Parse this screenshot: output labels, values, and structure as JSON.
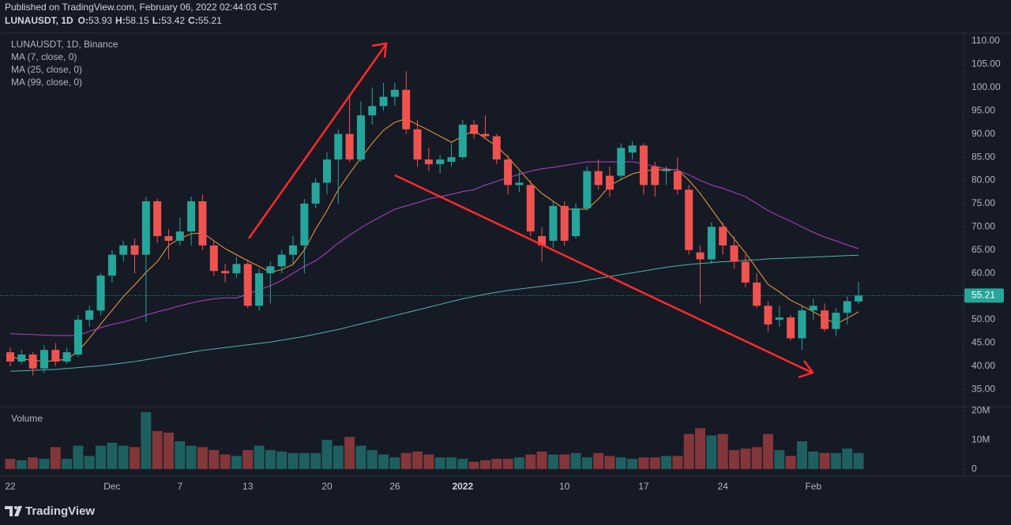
{
  "chart_data": {
    "type": "candlestick",
    "title": "Published on TradingView.com, February 06, 2022 02:44:03 CST",
    "symbol": "LUNAUSDT, 1D",
    "ohlc_labels": [
      "O:",
      "H:",
      "L:",
      "C:"
    ],
    "subtitle": "LUNAUSDT, 1D, Binance",
    "branding": "TradingView",
    "up_color": "#26a69a",
    "down_color": "#ef5350",
    "categories": [
      "22",
      null,
      null,
      null,
      null,
      null,
      null,
      null,
      null,
      "Dec",
      null,
      null,
      null,
      null,
      null,
      "7",
      null,
      null,
      null,
      null,
      null,
      "13",
      null,
      null,
      null,
      null,
      null,
      null,
      "20",
      null,
      null,
      null,
      null,
      null,
      "26",
      null,
      null,
      null,
      null,
      null,
      "2022",
      null,
      null,
      null,
      null,
      null,
      null,
      null,
      null,
      "10",
      null,
      null,
      null,
      null,
      null,
      null,
      "17",
      null,
      null,
      null,
      null,
      null,
      null,
      "24",
      null,
      null,
      null,
      null,
      null,
      null,
      null,
      "Feb",
      null,
      null,
      null,
      null
    ],
    "open": [
      43,
      41,
      42.5,
      39.5,
      43.5,
      41,
      42.5,
      50,
      52,
      59.5,
      64,
      66,
      64,
      75.5,
      68,
      67,
      69,
      75.5,
      66,
      60.5,
      60,
      62,
      53,
      60,
      61.5,
      64,
      66,
      75,
      79.5,
      84.5,
      90,
      84.5,
      94,
      96,
      98,
      99.5,
      91,
      84.5,
      83.5,
      84,
      85,
      92,
      90,
      89.5,
      84.5,
      79,
      79,
      68,
      67,
      74.5,
      68,
      74,
      82,
      81,
      81,
      86,
      87.5,
      83,
      82,
      82,
      78,
      64.5,
      63,
      70,
      66,
      62.5,
      58,
      53,
      50,
      50.5,
      46,
      52,
      52,
      48,
      51.5,
      53.93
    ],
    "high": [
      44,
      43.5,
      43,
      44.5,
      45,
      44,
      51,
      53,
      60,
      65,
      67,
      67.5,
      76.5,
      76,
      69.5,
      72,
      76.5,
      77,
      67,
      62,
      63.5,
      63,
      61,
      62.5,
      65,
      68,
      76,
      80.5,
      86,
      91,
      98,
      97,
      100,
      101,
      101,
      103.5,
      93,
      87,
      85.5,
      88,
      93,
      93,
      94,
      90,
      85.5,
      82,
      80,
      70,
      75.5,
      75.5,
      75,
      83,
      84.5,
      83,
      88,
      88.5,
      88,
      84,
      83,
      85,
      79,
      66,
      71,
      71,
      68,
      64,
      60,
      54,
      53,
      51,
      53,
      54.5,
      53.5,
      52.5,
      55,
      58.15
    ],
    "low": [
      40,
      40.5,
      38,
      38.5,
      40,
      40.5,
      42,
      48.5,
      51,
      58,
      62.5,
      60,
      49.5,
      66.5,
      63,
      66,
      66,
      65,
      59.5,
      58,
      59,
      52.5,
      52,
      53.5,
      60,
      62,
      60,
      74,
      77,
      75,
      84,
      84,
      92,
      95,
      96,
      90,
      83,
      82,
      81.5,
      83,
      84.5,
      89,
      89,
      83.5,
      77,
      77.5,
      68,
      62.5,
      65.5,
      66,
      67.5,
      73.5,
      78,
      76.5,
      80,
      84.5,
      77,
      76.5,
      79,
      77,
      64,
      53.5,
      62,
      64,
      61,
      57,
      52.5,
      47.5,
      48.5,
      45.5,
      43.5,
      50,
      47.5,
      46.5,
      49,
      53.42
    ],
    "close": [
      41,
      42.5,
      39.5,
      43.5,
      41,
      43,
      50,
      52,
      59.5,
      64,
      66,
      64,
      75.5,
      68,
      67,
      69,
      75.5,
      66,
      60.5,
      60,
      62,
      53,
      60,
      61.5,
      64,
      66,
      75,
      79.5,
      84.5,
      90,
      84.5,
      94,
      96,
      98,
      99.5,
      91,
      84.5,
      83.5,
      84.5,
      85,
      92,
      90,
      89.5,
      84.5,
      79,
      79.5,
      69,
      66,
      74.5,
      67,
      74,
      82,
      79,
      78,
      87,
      87.5,
      79,
      79,
      82.2,
      78,
      65,
      63,
      70,
      66,
      62.5,
      58,
      53,
      49,
      50.5,
      46,
      52,
      53,
      48,
      51.5,
      54,
      55.21
    ],
    "series": [
      {
        "name": "MA (7, close, 0)",
        "color": "#f59f3a",
        "values": [
          42,
          41.5,
          41.3,
          41,
          41.2,
          41.5,
          43.2,
          46,
          49.1,
          52,
          55,
          57.5,
          60.2,
          62.5,
          66,
          67.5,
          68.5,
          68.7,
          67,
          65.3,
          64,
          62.7,
          61.5,
          60.2,
          60.8,
          61.9,
          65,
          69.5,
          73.5,
          78,
          81.5,
          84.8,
          88,
          90.8,
          92.5,
          93.3,
          92,
          90.8,
          89.5,
          88.2,
          89.5,
          90.8,
          89,
          87.4,
          85,
          82.3,
          79.5,
          77.2,
          75.5,
          73.8,
          73.8,
          73.8,
          76,
          78.9,
          80.2,
          81.4,
          82,
          82.3,
          82.3,
          82.3,
          80,
          77.2,
          73.8,
          70.4,
          67.4,
          64.4,
          61,
          57.6,
          56,
          54.2,
          53,
          51.7,
          50.4,
          49.1,
          50.3,
          51.7
        ]
      },
      {
        "name": "MA (25, close, 0)",
        "color": "#b541c9",
        "values": [
          47,
          46.9,
          46.8,
          46.7,
          46.6,
          46.6,
          46.6,
          47.5,
          48.3,
          49,
          49.5,
          50.2,
          51,
          51.7,
          52.3,
          53,
          53.6,
          54.1,
          54.5,
          54.7,
          54.7,
          55.5,
          56.5,
          57.3,
          58.5,
          60,
          61.5,
          62.7,
          64.5,
          66.5,
          68.2,
          69.8,
          71.2,
          72.5,
          73.8,
          74.5,
          75.2,
          76,
          76.5,
          77,
          77.6,
          78,
          79,
          79.8,
          80.6,
          81.3,
          82,
          82.5,
          82.8,
          83.2,
          83.6,
          84,
          84,
          84,
          84,
          84,
          83.6,
          83,
          82.5,
          82.2,
          81.2,
          80,
          79,
          78.3,
          77.4,
          76.5,
          75,
          73.5,
          72.3,
          71.2,
          70,
          68.8,
          67.8,
          67,
          66.1,
          65.3
        ]
      },
      {
        "name": "MA (99, close, 0)",
        "color": "#4fb6ad",
        "values": [
          38.9,
          39,
          39.1,
          39.2,
          39.3,
          39.5,
          39.7,
          39.9,
          40.1,
          40.4,
          40.7,
          41,
          41.4,
          41.8,
          42.2,
          42.6,
          43,
          43.4,
          43.7,
          44,
          44.3,
          44.6,
          44.9,
          45.2,
          45.6,
          46,
          46.4,
          46.9,
          47.4,
          47.9,
          48.5,
          49.1,
          49.7,
          50.3,
          50.9,
          51.5,
          52.1,
          52.7,
          53.3,
          53.9,
          54.5,
          55,
          55.5,
          55.9,
          56.3,
          56.6,
          56.9,
          57.2,
          57.5,
          57.8,
          58.1,
          58.5,
          58.9,
          59.3,
          59.7,
          60.1,
          60.5,
          60.9,
          61.3,
          61.6,
          61.9,
          62.1,
          62.3,
          62.5,
          62.6,
          62.8,
          62.9,
          63.1,
          63.2,
          63.3,
          63.4,
          63.5,
          63.6,
          63.7,
          63.8,
          63.9
        ]
      }
    ],
    "ylim": [
      31.3,
      111.7
    ],
    "yticks": [
      {
        "value": 35,
        "label": "35.00"
      },
      {
        "value": 40,
        "label": "40.00"
      },
      {
        "value": 45,
        "label": "45.00"
      },
      {
        "value": 50,
        "label": "50.00"
      },
      {
        "value": 55,
        "label": "55.00"
      },
      {
        "value": 60,
        "label": "60.00"
      },
      {
        "value": 65,
        "label": "65.00"
      },
      {
        "value": 70,
        "label": "70.00"
      },
      {
        "value": 75,
        "label": "75.00"
      },
      {
        "value": 80,
        "label": "80.00"
      },
      {
        "value": 85,
        "label": "85.00"
      },
      {
        "value": 90,
        "label": "90.00"
      },
      {
        "value": 95,
        "label": "95.00"
      },
      {
        "value": 100,
        "label": "100.00"
      },
      {
        "value": 105,
        "label": "105.00"
      },
      {
        "value": 110,
        "label": "110.00"
      }
    ],
    "volume": {
      "label": "Volume",
      "values": [
        3500000,
        3000000,
        4000000,
        3500000,
        7500000,
        3500000,
        8000000,
        4500000,
        8000000,
        9000000,
        8000000,
        7500000,
        19500000,
        13000000,
        12500000,
        9500000,
        8000000,
        7500000,
        6500000,
        5000000,
        4500000,
        6500000,
        8000000,
        6500000,
        6000000,
        5500000,
        5500000,
        5500000,
        10000000,
        8000000,
        11000000,
        8000000,
        6500000,
        5000000,
        4000000,
        5500000,
        6000000,
        5000000,
        4000000,
        4000000,
        3500000,
        2500000,
        3000000,
        3500000,
        3500000,
        4000000,
        5000000,
        6000000,
        5000000,
        5000000,
        5500000,
        4000000,
        5500000,
        4500000,
        4000000,
        3500000,
        4000000,
        4000000,
        4500000,
        4500000,
        12000000,
        14000000,
        11500000,
        12000000,
        6500000,
        7000000,
        7500000,
        12000000,
        6500000,
        4500000,
        9500000,
        6000000,
        5500000,
        5500000,
        7000000,
        5500000
      ],
      "ylim": [
        -2400000,
        21400000
      ],
      "yticks": [
        0,
        {
          "value": 10000000,
          "label": "10M"
        },
        {
          "value": 20000000,
          "label": "20M"
        }
      ]
    }
  }
}
